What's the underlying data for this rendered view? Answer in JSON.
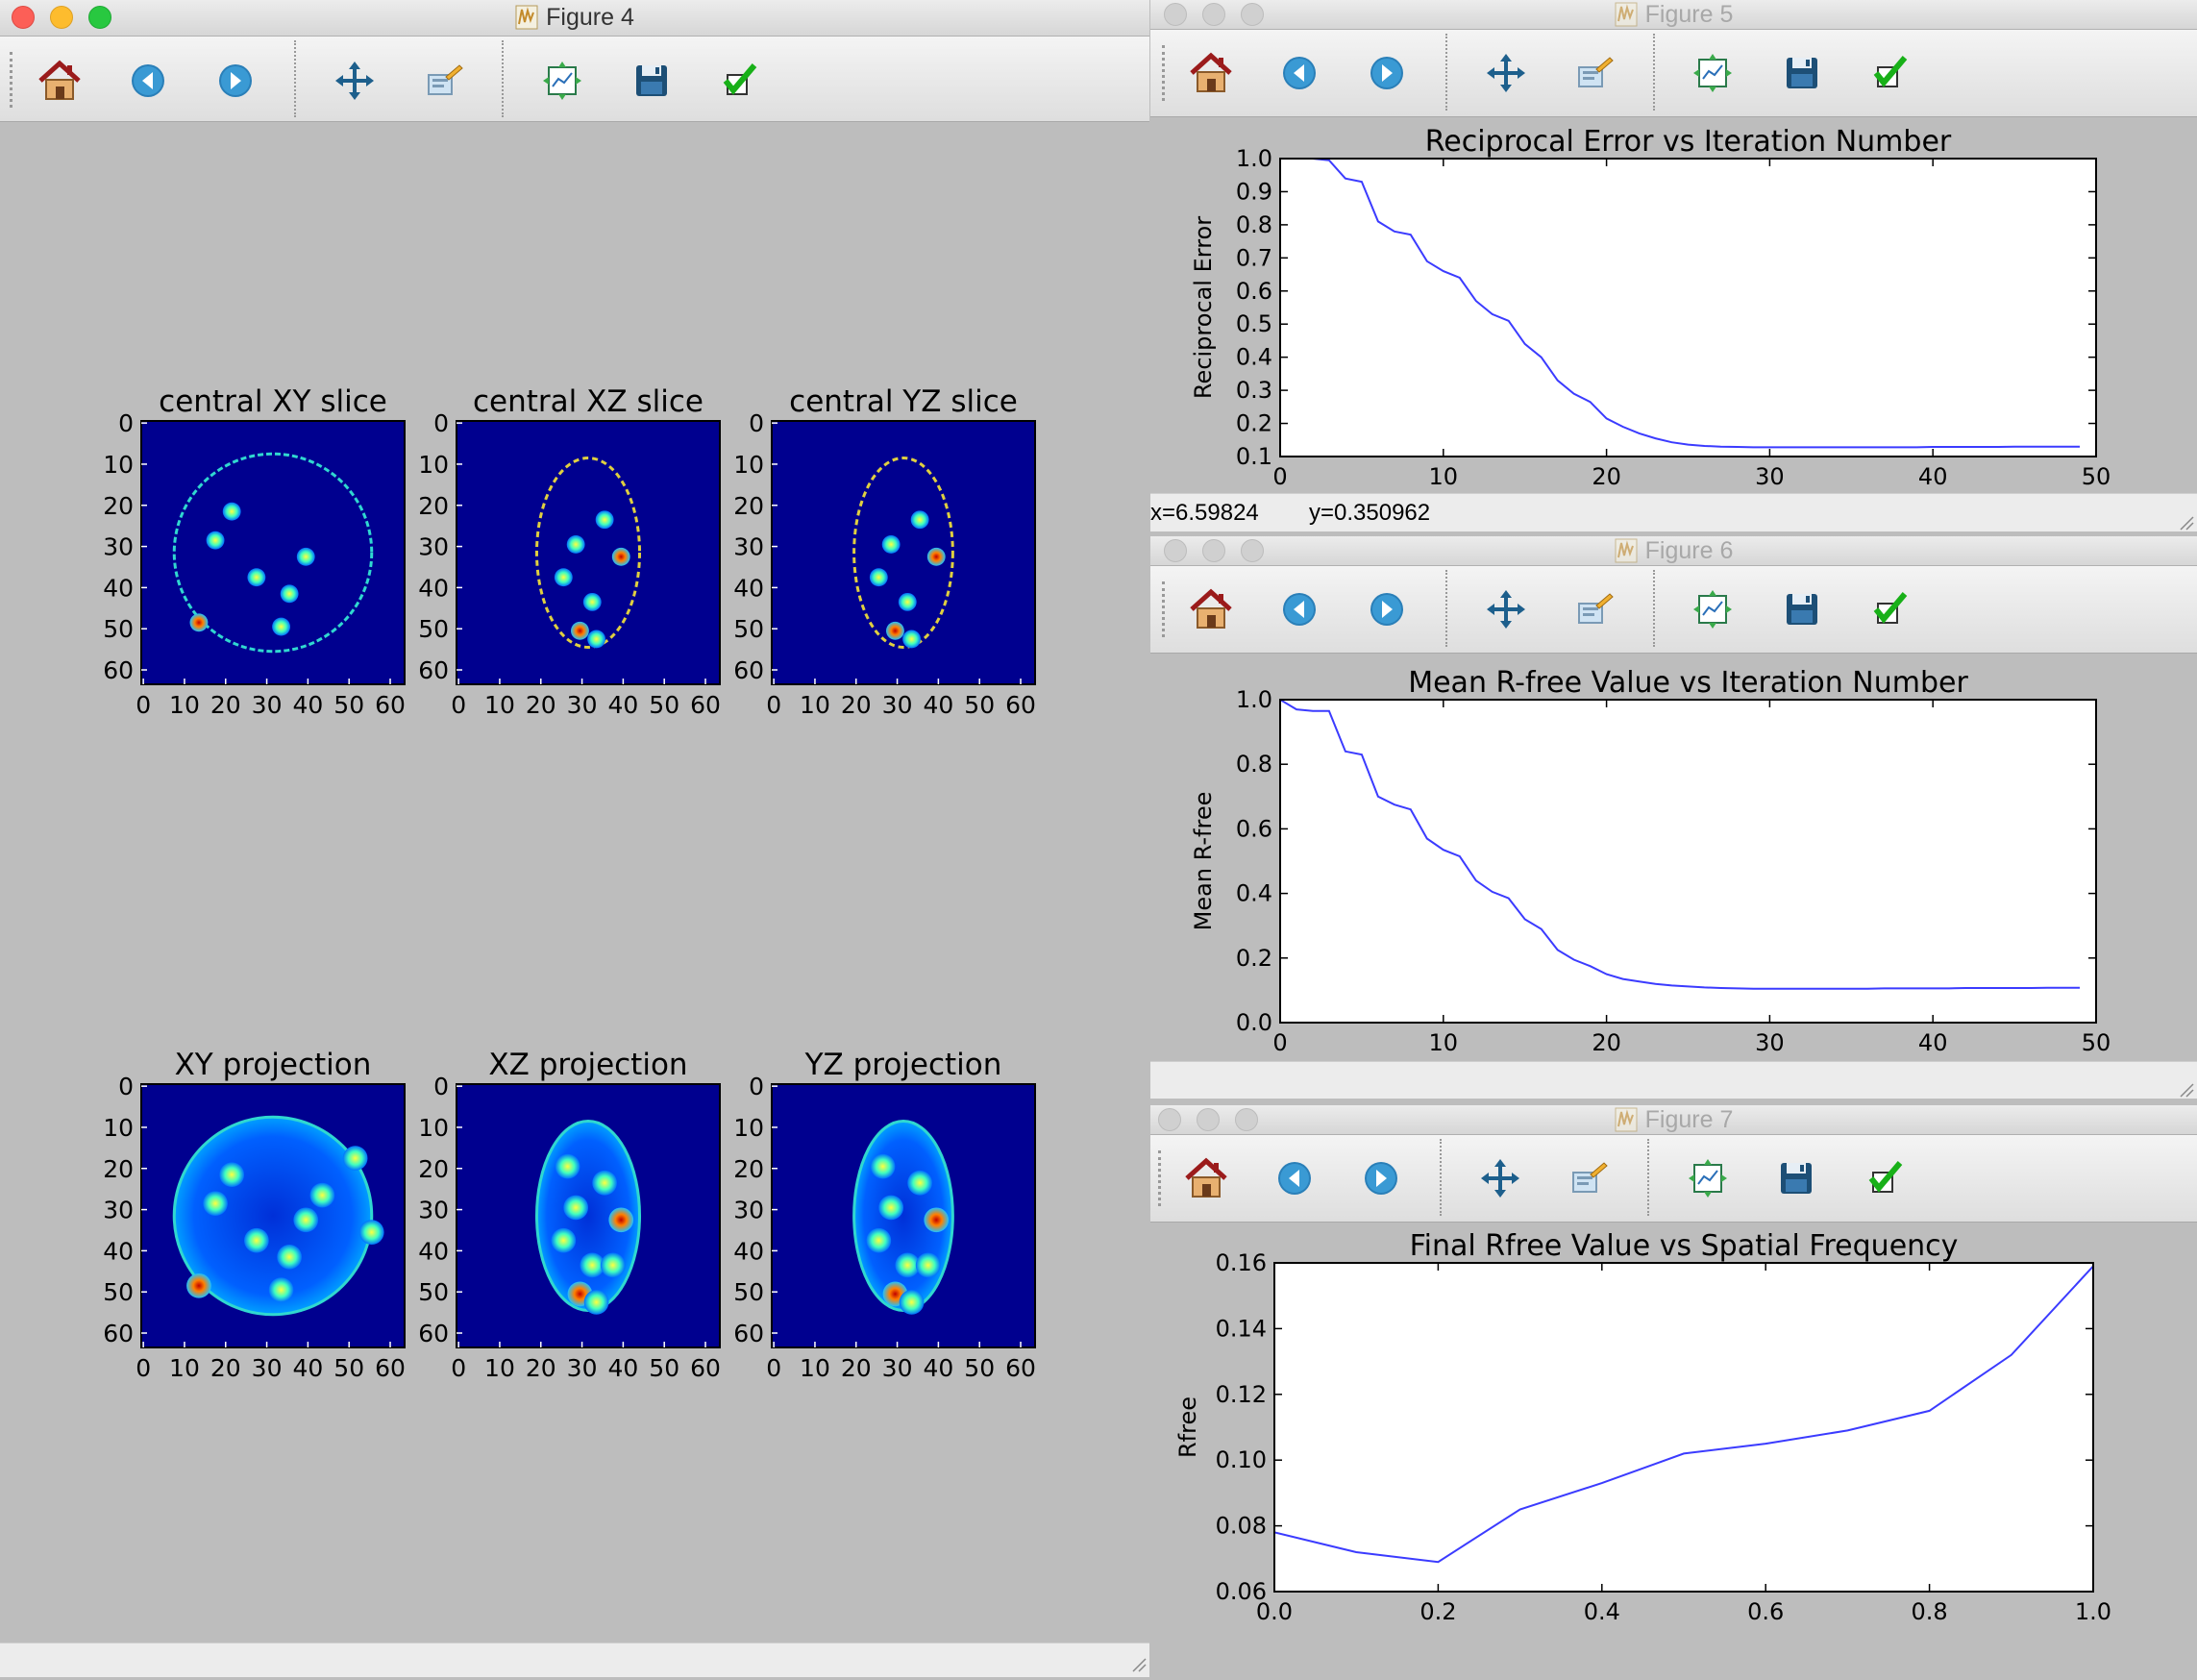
{
  "figure4": {
    "title": "Figure 4",
    "panels": [
      {
        "title": "central XY slice"
      },
      {
        "title": "central XZ slice"
      },
      {
        "title": "central YZ slice"
      },
      {
        "title": "XY projection"
      },
      {
        "title": "XZ projection"
      },
      {
        "title": "YZ projection"
      }
    ],
    "ytick_labels": [
      "0",
      "10",
      "20",
      "30",
      "40",
      "50",
      "60"
    ],
    "xtick_labels": [
      "0",
      "10",
      "20",
      "30",
      "40",
      "50",
      "60"
    ],
    "colormap": "jet"
  },
  "figure5": {
    "title": "Figure 5",
    "status_x": "x=6.59824",
    "status_y": "y=0.350962"
  },
  "figure6": {
    "title": "Figure 6"
  },
  "figure7": {
    "title": "Figure 7"
  },
  "toolbar": {
    "buttons": [
      "home-icon",
      "back-arrow-icon",
      "forward-arrow-icon",
      "pan-icon",
      "configure-subplots-icon",
      "zoom-rect-icon",
      "save-icon",
      "edit-check-icon"
    ]
  },
  "colors": {
    "line": "#3b3bff",
    "image_background": "#00008f",
    "window_background": "#bdbdbd"
  },
  "chart_data": [
    {
      "type": "line",
      "title": "Reciprocal Error vs Iteration Number",
      "xlabel": "",
      "ylabel": "Reciprocal Error",
      "xlim": [
        0,
        50
      ],
      "ylim": [
        0.1,
        1.0
      ],
      "xticks": [
        0,
        10,
        20,
        30,
        40,
        50
      ],
      "yticks": [
        0.1,
        0.2,
        0.3,
        0.4,
        0.5,
        0.6,
        0.7,
        0.8,
        0.9,
        1.0
      ],
      "xtick_labels": [
        "0",
        "10",
        "20",
        "30",
        "40",
        "50"
      ],
      "ytick_labels": [
        "0.1",
        "0.2",
        "0.3",
        "0.4",
        "0.5",
        "0.6",
        "0.7",
        "0.8",
        "0.9",
        "1.0"
      ],
      "x": [
        0,
        1,
        2,
        3,
        4,
        5,
        6,
        7,
        8,
        9,
        10,
        11,
        12,
        13,
        14,
        15,
        16,
        17,
        18,
        19,
        20,
        21,
        22,
        23,
        24,
        25,
        26,
        27,
        28,
        29,
        30,
        31,
        32,
        33,
        34,
        35,
        36,
        37,
        38,
        39,
        40,
        41,
        42,
        43,
        44,
        45,
        46,
        47,
        48,
        49
      ],
      "y": [
        1.04,
        1.02,
        1.0,
        0.995,
        0.94,
        0.93,
        0.81,
        0.78,
        0.77,
        0.69,
        0.66,
        0.64,
        0.57,
        0.53,
        0.51,
        0.44,
        0.4,
        0.33,
        0.29,
        0.265,
        0.215,
        0.19,
        0.17,
        0.155,
        0.143,
        0.136,
        0.132,
        0.13,
        0.129,
        0.128,
        0.128,
        0.128,
        0.128,
        0.128,
        0.128,
        0.128,
        0.128,
        0.128,
        0.128,
        0.128,
        0.129,
        0.129,
        0.129,
        0.129,
        0.129,
        0.13,
        0.13,
        0.13,
        0.13,
        0.13
      ],
      "grid": false
    },
    {
      "type": "line",
      "title": "Mean R-free Value vs Iteration Number",
      "xlabel": "",
      "ylabel": "Mean R-free",
      "xlim": [
        0,
        50
      ],
      "ylim": [
        0.0,
        1.0
      ],
      "xticks": [
        0,
        10,
        20,
        30,
        40,
        50
      ],
      "yticks": [
        0.0,
        0.2,
        0.4,
        0.6,
        0.8,
        1.0
      ],
      "xtick_labels": [
        "0",
        "10",
        "20",
        "30",
        "40",
        "50"
      ],
      "ytick_labels": [
        "0.0",
        "0.2",
        "0.4",
        "0.6",
        "0.8",
        "1.0"
      ],
      "x": [
        0,
        1,
        2,
        3,
        4,
        5,
        6,
        7,
        8,
        9,
        10,
        11,
        12,
        13,
        14,
        15,
        16,
        17,
        18,
        19,
        20,
        21,
        22,
        23,
        24,
        25,
        26,
        27,
        28,
        29,
        30,
        31,
        32,
        33,
        34,
        35,
        36,
        37,
        38,
        39,
        40,
        41,
        42,
        43,
        44,
        45,
        46,
        47,
        48,
        49
      ],
      "y": [
        1.0,
        0.97,
        0.965,
        0.965,
        0.84,
        0.83,
        0.7,
        0.675,
        0.66,
        0.57,
        0.535,
        0.515,
        0.44,
        0.405,
        0.385,
        0.32,
        0.29,
        0.225,
        0.195,
        0.175,
        0.15,
        0.135,
        0.127,
        0.12,
        0.115,
        0.112,
        0.109,
        0.107,
        0.106,
        0.105,
        0.105,
        0.105,
        0.105,
        0.105,
        0.105,
        0.105,
        0.105,
        0.106,
        0.106,
        0.106,
        0.106,
        0.106,
        0.107,
        0.107,
        0.107,
        0.107,
        0.107,
        0.108,
        0.108,
        0.108
      ],
      "grid": false
    },
    {
      "type": "line",
      "title": "Final Rfree Value vs Spatial Frequency",
      "xlabel": "",
      "ylabel": "Rfree",
      "xlim": [
        0.0,
        1.0
      ],
      "ylim": [
        0.06,
        0.16
      ],
      "xticks": [
        0.0,
        0.2,
        0.4,
        0.6,
        0.8,
        1.0
      ],
      "yticks": [
        0.06,
        0.08,
        0.1,
        0.12,
        0.14,
        0.16
      ],
      "xtick_labels": [
        "0.0",
        "0.2",
        "0.4",
        "0.6",
        "0.8",
        "1.0"
      ],
      "ytick_labels": [
        "0.06",
        "0.08",
        "0.10",
        "0.12",
        "0.14",
        "0.16"
      ],
      "x": [
        0.0,
        0.1,
        0.2,
        0.3,
        0.4,
        0.5,
        0.6,
        0.7,
        0.8,
        0.9,
        1.0
      ],
      "y": [
        0.078,
        0.072,
        0.069,
        0.085,
        0.093,
        0.102,
        0.105,
        0.109,
        0.115,
        0.132,
        0.159
      ],
      "grid": false
    }
  ]
}
